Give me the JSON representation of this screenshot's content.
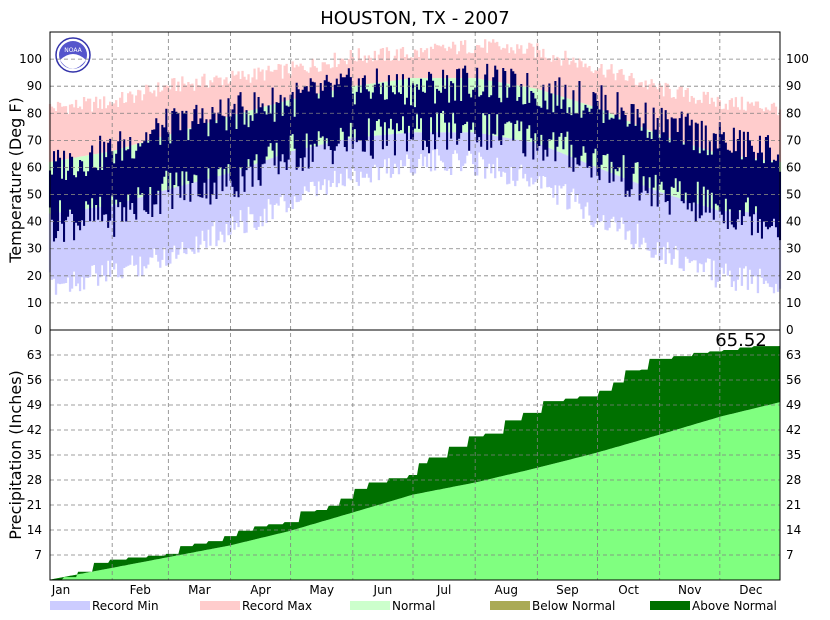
{
  "chart_data": [
    {
      "type": "bar",
      "title": "HOUSTON, TX - 2007",
      "ylabel": "Temperature (Deg F)",
      "ylim": [
        0,
        110
      ],
      "yticks": [
        0,
        10,
        20,
        30,
        40,
        50,
        60,
        70,
        80,
        90,
        100
      ],
      "x_months": [
        "Jan",
        "Feb",
        "Mar",
        "Apr",
        "May",
        "Jun",
        "Jul",
        "Aug",
        "Sep",
        "Oct",
        "Nov",
        "Dec"
      ],
      "grid": true,
      "series": [
        {
          "name": "Record Min",
          "color": "#ccccff",
          "monthly_approx": [
            [
              1,
              22
            ],
            [
              32,
              26
            ],
            [
              60,
              33
            ],
            [
              91,
              43
            ],
            [
              121,
              52
            ],
            [
              152,
              62
            ],
            [
              182,
              67
            ],
            [
              213,
              67
            ],
            [
              244,
              60
            ],
            [
              274,
              47
            ],
            [
              305,
              35
            ],
            [
              335,
              25
            ],
            [
              365,
              22
            ]
          ]
        },
        {
          "name": "Record Max",
          "color": "#ffcccc",
          "monthly_approx": [
            [
              1,
              82
            ],
            [
              32,
              84
            ],
            [
              60,
              90
            ],
            [
              91,
              93
            ],
            [
              121,
              96
            ],
            [
              152,
              101
            ],
            [
              182,
              102
            ],
            [
              213,
              105
            ],
            [
              244,
              103
            ],
            [
              274,
              97
            ],
            [
              305,
              89
            ],
            [
              335,
              84
            ],
            [
              365,
              82
            ]
          ]
        },
        {
          "name": "Normal",
          "color": "#ccffcc",
          "monthly_approx": [
            [
              1,
              [
                43,
                62
              ]
            ],
            [
              32,
              [
                46,
                66
              ]
            ],
            [
              60,
              [
                52,
                72
              ]
            ],
            [
              91,
              [
                58,
                79
              ]
            ],
            [
              121,
              [
                66,
                85
              ]
            ],
            [
              152,
              [
                71,
                90
              ]
            ],
            [
              182,
              [
                73,
                93
              ]
            ],
            [
              213,
              [
                73,
                93
              ]
            ],
            [
              244,
              [
                69,
                89
              ]
            ],
            [
              274,
              [
                60,
                82
              ]
            ],
            [
              305,
              [
                51,
                72
              ]
            ],
            [
              335,
              [
                44,
                65
              ]
            ],
            [
              365,
              [
                43,
                62
              ]
            ]
          ]
        },
        {
          "name": "Actual daily range",
          "color": "#000066",
          "monthly_approx": [
            [
              1,
              [
                40,
                60
              ]
            ],
            [
              32,
              [
                42,
                66
              ]
            ],
            [
              60,
              [
                52,
                75
              ]
            ],
            [
              91,
              [
                55,
                80
              ]
            ],
            [
              121,
              [
                65,
                85
              ]
            ],
            [
              152,
              [
                70,
                90
              ]
            ],
            [
              182,
              [
                72,
                89
              ]
            ],
            [
              213,
              [
                74,
                92
              ]
            ],
            [
              244,
              [
                70,
                88
              ]
            ],
            [
              274,
              [
                62,
                84
              ]
            ],
            [
              305,
              [
                50,
                76
              ]
            ],
            [
              335,
              [
                45,
                70
              ]
            ],
            [
              365,
              [
                40,
                65
              ]
            ]
          ]
        }
      ]
    },
    {
      "type": "area",
      "ylabel": "Precipitation (Inches)",
      "ylim": [
        0,
        70
      ],
      "yticks": [
        7,
        14,
        21,
        28,
        35,
        42,
        49,
        56,
        63
      ],
      "annotation": "65.52",
      "grid": true,
      "series": [
        {
          "name": "Normal",
          "color": "#80ff80",
          "values": [
            [
              1,
              0.1
            ],
            [
              32,
              3.4
            ],
            [
              60,
              6.4
            ],
            [
              91,
              9.7
            ],
            [
              121,
              13.8
            ],
            [
              152,
              18.9
            ],
            [
              182,
              23.9
            ],
            [
              213,
              27.3
            ],
            [
              244,
              31.4
            ],
            [
              274,
              35.7
            ],
            [
              305,
              40.7
            ],
            [
              335,
              45.7
            ],
            [
              365,
              49.8
            ]
          ]
        },
        {
          "name": "Below Normal",
          "color": "#aaaa55"
        },
        {
          "name": "Above Normal",
          "color": "#007000"
        },
        {
          "name": "Actual cumulative",
          "color": "#007000",
          "values": [
            [
              1,
              0.1
            ],
            [
              8,
              0.8
            ],
            [
              15,
              2.3
            ],
            [
              23,
              4.8
            ],
            [
              31,
              5.7
            ],
            [
              40,
              6.3
            ],
            [
              50,
              6.8
            ],
            [
              59,
              7.3
            ],
            [
              66,
              9.5
            ],
            [
              73,
              10.2
            ],
            [
              80,
              10.9
            ],
            [
              88,
              12.3
            ],
            [
              95,
              13.8
            ],
            [
              103,
              15.0
            ],
            [
              110,
              15.6
            ],
            [
              118,
              16.2
            ],
            [
              126,
              19.2
            ],
            [
              134,
              19.6
            ],
            [
              140,
              20.8
            ],
            [
              146,
              22.8
            ],
            [
              153,
              25.5
            ],
            [
              160,
              27.3
            ],
            [
              170,
              28.5
            ],
            [
              180,
              29.4
            ],
            [
              185,
              32.7
            ],
            [
              190,
              34.3
            ],
            [
              200,
              37.3
            ],
            [
              210,
              40.2
            ],
            [
              218,
              41.0
            ],
            [
              228,
              44.7
            ],
            [
              237,
              46.8
            ],
            [
              247,
              50.1
            ],
            [
              258,
              50.8
            ],
            [
              265,
              51.4
            ],
            [
              275,
              53.0
            ],
            [
              282,
              55.3
            ],
            [
              288,
              58.7
            ],
            [
              296,
              58.9
            ],
            [
              300,
              61.9
            ],
            [
              312,
              62.7
            ],
            [
              322,
              63.6
            ],
            [
              330,
              64.0
            ],
            [
              337,
              64.4
            ],
            [
              345,
              65.1
            ],
            [
              352,
              65.5
            ],
            [
              365,
              65.52
            ]
          ]
        }
      ]
    }
  ],
  "legend": [
    {
      "label": "Record Min",
      "color": "#ccccff"
    },
    {
      "label": "Record Max",
      "color": "#ffcccc"
    },
    {
      "label": "Normal",
      "color": "#ccffcc"
    },
    {
      "label": "Below Normal",
      "color": "#aaaa55"
    },
    {
      "label": "Above Normal",
      "color": "#007000"
    }
  ]
}
